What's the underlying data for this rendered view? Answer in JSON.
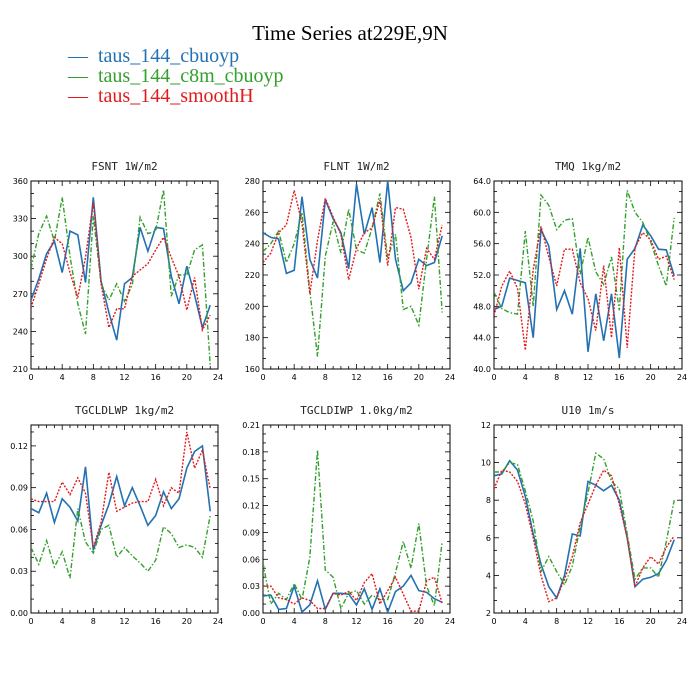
{
  "figure_title": "Time Series at229E,9N",
  "colors": {
    "blue": "#2271b3",
    "green": "#33a02c",
    "red": "#e31a1c"
  },
  "legend": [
    {
      "marker": "—",
      "label": "taus_144_cbuoyp",
      "color": "#2271b3"
    },
    {
      "marker": "—",
      "label": "taus_144_c8m_cbuoyp",
      "color": "#33a02c"
    },
    {
      "marker": "—",
      "label": "taus_144_smoothH",
      "color": "#e31a1c"
    }
  ],
  "chart_data": [
    {
      "type": "line",
      "title": "FSNT   1W/m2",
      "xlim": [
        0,
        24
      ],
      "xticks": [
        "0",
        "4",
        "8",
        "12",
        "16",
        "20",
        "24"
      ],
      "ylim": [
        210,
        360
      ],
      "yticks": [
        "210",
        "240",
        "270",
        "300",
        "330",
        "360"
      ],
      "x": [
        0,
        1,
        2,
        3,
        4,
        5,
        6,
        7,
        8,
        9,
        10,
        11,
        12,
        13,
        14,
        15,
        16,
        17,
        18,
        19,
        20,
        21,
        22,
        23
      ],
      "series": [
        {
          "color": "#2271b3",
          "style": "solid",
          "values": [
            265,
            282,
            302,
            312,
            287,
            320,
            317,
            279,
            347,
            280,
            255,
            233,
            278,
            283,
            323,
            304,
            323,
            322,
            284,
            262,
            292,
            269,
            243,
            261
          ]
        },
        {
          "color": "#33a02c",
          "style": "dash-dot",
          "values": [
            290,
            318,
            332,
            312,
            347,
            300,
            262,
            238,
            332,
            278,
            265,
            278,
            264,
            277,
            331,
            318,
            320,
            353,
            268,
            285,
            285,
            305,
            309,
            213
          ]
        },
        {
          "color": "#e31a1c",
          "style": "dotted",
          "values": [
            259,
            278,
            298,
            315,
            310,
            287,
            267,
            299,
            343,
            278,
            243,
            258,
            258,
            284,
            289,
            294,
            305,
            315,
            299,
            284,
            257,
            283,
            241,
            253
          ]
        }
      ]
    },
    {
      "type": "line",
      "title": "FLNT   1W/m2",
      "xlim": [
        0,
        24
      ],
      "xticks": [
        "0",
        "4",
        "8",
        "12",
        "16",
        "20",
        "24"
      ],
      "ylim": [
        160,
        280
      ],
      "yticks": [
        "160",
        "180",
        "200",
        "220",
        "240",
        "260",
        "280"
      ],
      "x": [
        0,
        1,
        2,
        3,
        4,
        5,
        6,
        7,
        8,
        9,
        10,
        11,
        12,
        13,
        14,
        15,
        16,
        17,
        18,
        19,
        20,
        21,
        22,
        23
      ],
      "series": [
        {
          "color": "#2271b3",
          "style": "solid",
          "values": [
            247,
            244,
            243,
            221,
            223,
            270,
            230,
            218,
            268,
            256,
            247,
            224,
            278,
            246,
            263,
            228,
            280,
            230,
            210,
            215,
            230,
            226,
            228,
            245
          ]
        },
        {
          "color": "#33a02c",
          "style": "dash-dot",
          "values": [
            235,
            240,
            248,
            228,
            240,
            260,
            210,
            168,
            232,
            254,
            234,
            262,
            236,
            234,
            250,
            272,
            231,
            246,
            198,
            200,
            188,
            230,
            270,
            196
          ]
        },
        {
          "color": "#e31a1c",
          "style": "dotted",
          "values": [
            228,
            234,
            247,
            252,
            274,
            253,
            208,
            242,
            269,
            257,
            246,
            217,
            237,
            247,
            250,
            268,
            226,
            263,
            262,
            244,
            211,
            237,
            230,
            252
          ]
        }
      ]
    },
    {
      "type": "line",
      "title": "TMQ   1kg/m2",
      "xlim": [
        0,
        24
      ],
      "xticks": [
        "0",
        "4",
        "8",
        "12",
        "16",
        "20",
        "24"
      ],
      "ylim": [
        40.0,
        64.0
      ],
      "yticks": [
        "40.0",
        "44.0",
        "48.0",
        "52.0",
        "56.0",
        "60.0",
        "64.0"
      ],
      "x": [
        0,
        1,
        2,
        3,
        4,
        5,
        6,
        7,
        8,
        9,
        10,
        11,
        12,
        13,
        14,
        15,
        16,
        17,
        18,
        19,
        20,
        21,
        22,
        23
      ],
      "series": [
        {
          "color": "#2271b3",
          "style": "solid",
          "values": [
            47.6,
            48.0,
            51.6,
            51.3,
            51.0,
            44.0,
            57.8,
            55.7,
            47.6,
            50.0,
            47.0,
            55.4,
            42.2,
            49.6,
            43.6,
            49.6,
            41.4,
            54.0,
            55.4,
            58.4,
            57.0,
            55.3,
            55.2,
            51.9
          ]
        },
        {
          "color": "#33a02c",
          "style": "dash-dot",
          "values": [
            49.8,
            47.7,
            47.2,
            47.0,
            57.6,
            48.0,
            62.2,
            60.9,
            57.8,
            59.0,
            59.2,
            52.1,
            56.8,
            52.4,
            50.8,
            54.3,
            47.5,
            62.8,
            60.0,
            58.7,
            56.2,
            53.2,
            50.6,
            59.3
          ]
        },
        {
          "color": "#e31a1c",
          "style": "dotted",
          "values": [
            46.8,
            50.6,
            52.5,
            50.3,
            42.4,
            52.7,
            58.2,
            54.3,
            50.6,
            55.3,
            55.3,
            51.0,
            49.0,
            44.9,
            53.2,
            44.0,
            55.5,
            42.7,
            55.5,
            57.4,
            56.5,
            54.0,
            54.4,
            51.4
          ]
        }
      ]
    },
    {
      "type": "line",
      "title": "TGCLDLWP   1kg/m2",
      "xlim": [
        0,
        24
      ],
      "xticks": [
        "0",
        "4",
        "8",
        "12",
        "16",
        "20",
        "24"
      ],
      "ylim": [
        0.0,
        0.135
      ],
      "yticks": [
        "0.00",
        "0.03",
        "0.06",
        "0.09",
        "0.12"
      ],
      "x": [
        0,
        1,
        2,
        3,
        4,
        5,
        6,
        7,
        8,
        9,
        10,
        11,
        12,
        13,
        14,
        15,
        16,
        17,
        18,
        19,
        20,
        21,
        22,
        23
      ],
      "series": [
        {
          "color": "#2271b3",
          "style": "solid",
          "values": [
            0.075,
            0.072,
            0.086,
            0.065,
            0.082,
            0.076,
            0.066,
            0.105,
            0.045,
            0.063,
            0.078,
            0.098,
            0.077,
            0.09,
            0.077,
            0.063,
            0.07,
            0.087,
            0.075,
            0.082,
            0.104,
            0.116,
            0.12,
            0.073
          ]
        },
        {
          "color": "#33a02c",
          "style": "dash-dot",
          "values": [
            0.047,
            0.035,
            0.052,
            0.033,
            0.044,
            0.025,
            0.075,
            0.051,
            0.043,
            0.06,
            0.063,
            0.04,
            0.047,
            0.041,
            0.036,
            0.03,
            0.038,
            0.062,
            0.057,
            0.047,
            0.049,
            0.047,
            0.04,
            0.07
          ]
        },
        {
          "color": "#e31a1c",
          "style": "dotted",
          "values": [
            0.082,
            0.08,
            0.08,
            0.08,
            0.094,
            0.085,
            0.097,
            0.086,
            0.047,
            0.065,
            0.101,
            0.073,
            0.076,
            0.079,
            0.08,
            0.08,
            0.096,
            0.077,
            0.09,
            0.086,
            0.13,
            0.104,
            0.117,
            0.089
          ]
        }
      ]
    },
    {
      "type": "line",
      "title": "TGCLDIWP   1.0kg/m2",
      "xlim": [
        0,
        24
      ],
      "xticks": [
        "0",
        "4",
        "8",
        "12",
        "16",
        "20",
        "24"
      ],
      "ylim": [
        0.0,
        0.21
      ],
      "yticks": [
        "0.00",
        "0.03",
        "0.06",
        "0.09",
        "0.12",
        "0.15",
        "0.18",
        "0.21"
      ],
      "x": [
        0,
        1,
        2,
        3,
        4,
        5,
        6,
        7,
        8,
        9,
        10,
        11,
        12,
        13,
        14,
        15,
        16,
        17,
        18,
        19,
        20,
        21,
        22,
        23
      ],
      "series": [
        {
          "color": "#2271b3",
          "style": "solid",
          "values": [
            0.019,
            0.02,
            0.004,
            0.005,
            0.03,
            0.001,
            0.009,
            0.036,
            0.004,
            0.022,
            0.022,
            0.021,
            0.009,
            0.027,
            0.004,
            0.027,
            0.001,
            0.024,
            0.03,
            0.042,
            0.025,
            0.023,
            0.016,
            0.012
          ]
        },
        {
          "color": "#33a02c",
          "style": "dash-dot",
          "values": [
            0.056,
            0.01,
            0.022,
            0.015,
            0.033,
            0.015,
            0.062,
            0.182,
            0.048,
            0.04,
            0.005,
            0.022,
            0.025,
            0.01,
            0.02,
            0.015,
            0.015,
            0.045,
            0.08,
            0.05,
            0.1,
            0.03,
            0.008,
            0.08
          ]
        },
        {
          "color": "#e31a1c",
          "style": "dotted",
          "values": [
            0.03,
            0.03,
            0.017,
            0.015,
            0.01,
            0.017,
            0.014,
            0.005,
            0.005,
            0.022,
            0.02,
            0.024,
            0.014,
            0.034,
            0.044,
            0.01,
            0.025,
            0.04,
            0.021,
            0.002,
            0.002,
            0.036,
            0.04,
            0.011
          ]
        }
      ]
    },
    {
      "type": "line",
      "title": "U10   1m/s",
      "xlim": [
        0,
        24
      ],
      "xticks": [
        "0",
        "4",
        "8",
        "12",
        "16",
        "20",
        "24"
      ],
      "ylim": [
        2,
        12
      ],
      "yticks": [
        "2",
        "4",
        "6",
        "8",
        "10",
        "12"
      ],
      "x": [
        0,
        1,
        2,
        3,
        4,
        5,
        6,
        7,
        8,
        9,
        10,
        11,
        12,
        13,
        14,
        15,
        16,
        17,
        18,
        19,
        20,
        21,
        22,
        23
      ],
      "series": [
        {
          "color": "#2271b3",
          "style": "solid",
          "values": [
            9.3,
            9.4,
            10.1,
            9.6,
            8.2,
            6.2,
            4.6,
            3.4,
            2.8,
            4.0,
            6.2,
            6.1,
            9.0,
            8.8,
            8.5,
            8.8,
            8.0,
            6.0,
            3.4,
            3.8,
            3.9,
            4.1,
            4.8,
            5.9
          ]
        },
        {
          "color": "#33a02c",
          "style": "dash-dot",
          "values": [
            9.5,
            9.5,
            10.0,
            9.9,
            8.5,
            6.9,
            4.2,
            5.0,
            4.2,
            3.5,
            4.5,
            6.6,
            8.4,
            10.5,
            10.2,
            9.0,
            8.6,
            6.2,
            3.8,
            4.4,
            4.4,
            3.9,
            5.8,
            8.0
          ]
        },
        {
          "color": "#e31a1c",
          "style": "dotted",
          "values": [
            8.6,
            9.6,
            9.5,
            9.0,
            7.8,
            6.0,
            4.0,
            2.6,
            2.8,
            3.8,
            5.0,
            6.8,
            7.8,
            8.8,
            9.6,
            9.3,
            7.8,
            6.0,
            3.4,
            4.4,
            5.0,
            4.6,
            5.5,
            6.1
          ]
        }
      ]
    }
  ]
}
